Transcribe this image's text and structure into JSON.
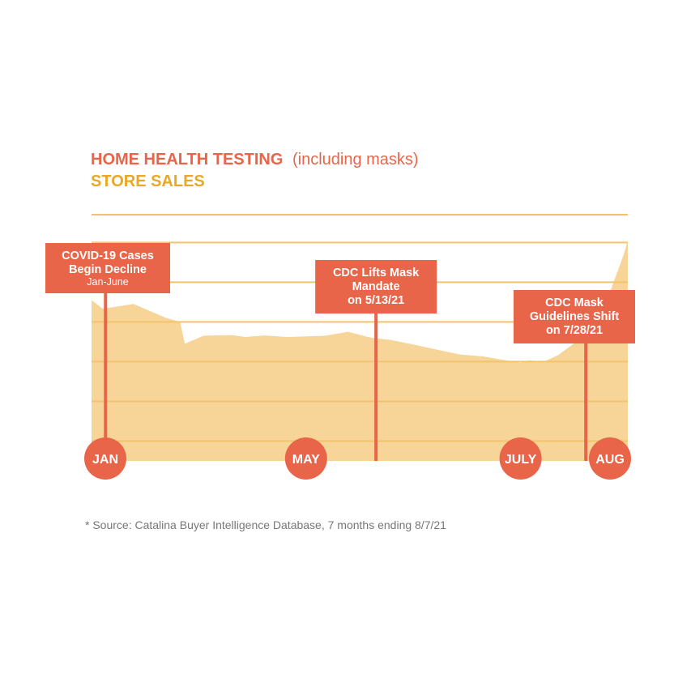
{
  "title": {
    "main": "HOME HEALTH TESTING",
    "qualifier": "(including masks)",
    "subtitle": "STORE SALES"
  },
  "colors": {
    "title": "#e8654a",
    "subtitle": "#e9a825",
    "area": "#f7d497",
    "gridline": "#f2c46e",
    "marker": "#e8654a",
    "text_on_marker": "#ffffff",
    "footnote": "#777777"
  },
  "chart_data": {
    "type": "area",
    "series": [
      {
        "values": [
          [
            0.0,
            40.5
          ],
          [
            0.12,
            38.3
          ],
          [
            0.45,
            39.5
          ],
          [
            0.8,
            36
          ],
          [
            0.95,
            35
          ],
          [
            1.0,
            29.5
          ],
          [
            1.2,
            31.5
          ],
          [
            1.5,
            31.7
          ],
          [
            1.65,
            31.2
          ],
          [
            1.85,
            31.6
          ],
          [
            2.1,
            31.2
          ],
          [
            2.5,
            31.5
          ],
          [
            2.75,
            32.5
          ],
          [
            3.0,
            31.0
          ],
          [
            3.2,
            30.5
          ],
          [
            3.45,
            29.3
          ],
          [
            3.75,
            27.8
          ],
          [
            3.95,
            26.8
          ],
          [
            4.2,
            26.3
          ],
          [
            4.4,
            25.5
          ],
          [
            4.6,
            24.7
          ],
          [
            4.7,
            25.3
          ],
          [
            4.85,
            25.0
          ],
          [
            5.0,
            26.6
          ],
          [
            5.3,
            31.8
          ],
          [
            5.45,
            34.0
          ],
          [
            5.55,
            42.0
          ],
          [
            5.7,
            51.5
          ],
          [
            5.75,
            55.5
          ]
        ]
      }
    ],
    "x_range": [
      0,
      5.75
    ],
    "y_range": [
      0,
      62
    ],
    "y_gridlines": [
      5,
      15,
      25,
      35,
      45,
      55
    ],
    "grid": true,
    "x_ticks": [
      {
        "x": 0,
        "label": "JAN"
      },
      {
        "x": 2.3,
        "label": "MAY"
      },
      {
        "x": 4.6,
        "label": "JULY"
      },
      {
        "x": 5.75,
        "label": "AUG"
      }
    ],
    "annotations": [
      {
        "x": 0.15,
        "lines": [
          "COVID-19 Cases",
          "Begin Decline"
        ],
        "sub": "Jan-June"
      },
      {
        "x": 3.05,
        "lines": [
          "CDC Lifts Mask",
          "Mandate",
          "on 5/13/21"
        ]
      },
      {
        "x": 5.3,
        "lines": [
          "CDC Mask",
          "Guidelines Shift",
          "on 7/28/21"
        ]
      }
    ]
  },
  "footnote": "* Source: Catalina Buyer Intelligence Database, 7 months ending 8/7/21"
}
